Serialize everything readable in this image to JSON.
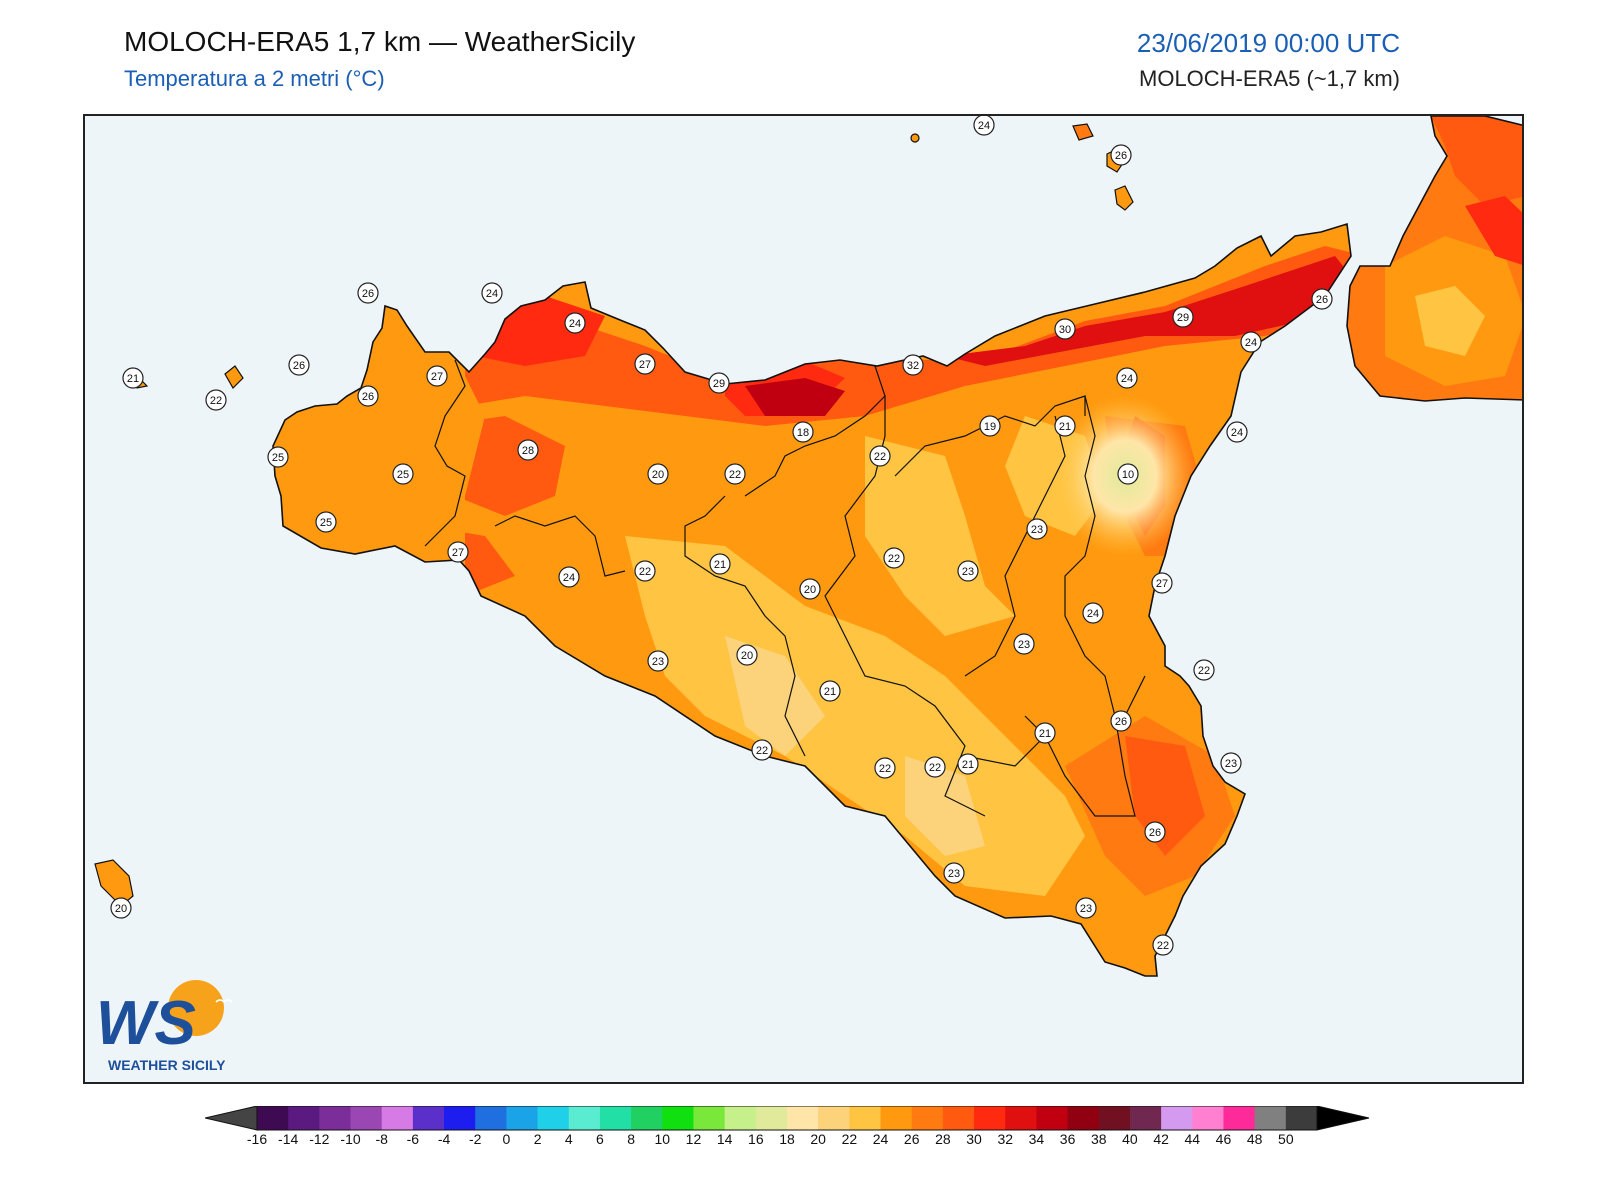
{
  "header": {
    "title": "MOLOCH-ERA5 1,7 km — WeatherSicily",
    "subtitle": "Temperatura a 2 metri (°C)",
    "datetime": "23/06/2019 00:00 UTC",
    "model": "MOLOCH-ERA5 (~1,7 km)"
  },
  "logo": {
    "letters": "WS",
    "text": "WEATHER SICILY"
  },
  "map": {
    "region": "Sicily",
    "sea_color": "#eef5f9",
    "stations": [
      {
        "v": "24"
      },
      {
        "v": "26"
      },
      {
        "v": "26"
      },
      {
        "v": "24"
      },
      {
        "v": "24"
      },
      {
        "v": "21"
      },
      {
        "v": "22"
      },
      {
        "v": "26"
      },
      {
        "v": "27"
      },
      {
        "v": "27"
      },
      {
        "v": "29"
      },
      {
        "v": "32"
      },
      {
        "v": "30"
      },
      {
        "v": "29"
      },
      {
        "v": "26"
      },
      {
        "v": "24"
      },
      {
        "v": "26"
      },
      {
        "v": "18"
      },
      {
        "v": "19"
      },
      {
        "v": "21"
      },
      {
        "v": "24"
      },
      {
        "v": "24"
      },
      {
        "v": "25"
      },
      {
        "v": "25"
      },
      {
        "v": "28"
      },
      {
        "v": "20"
      },
      {
        "v": "22"
      },
      {
        "v": "22"
      },
      {
        "v": "10"
      },
      {
        "v": "25"
      },
      {
        "v": "27"
      },
      {
        "v": "24"
      },
      {
        "v": "22"
      },
      {
        "v": "21"
      },
      {
        "v": "20"
      },
      {
        "v": "22"
      },
      {
        "v": "23"
      },
      {
        "v": "23"
      },
      {
        "v": "27"
      },
      {
        "v": "24"
      },
      {
        "v": "23"
      },
      {
        "v": "23"
      },
      {
        "v": "20"
      },
      {
        "v": "21"
      },
      {
        "v": "22"
      },
      {
        "v": "22"
      },
      {
        "v": "22"
      },
      {
        "v": "21"
      },
      {
        "v": "21"
      },
      {
        "v": "26"
      },
      {
        "v": "23"
      },
      {
        "v": "22"
      },
      {
        "v": "26"
      },
      {
        "v": "23"
      },
      {
        "v": "23"
      },
      {
        "v": "22"
      },
      {
        "v": "20"
      }
    ]
  },
  "colorbar": {
    "ticks": [
      "-16",
      "-14",
      "-12",
      "-10",
      "-8",
      "-6",
      "-4",
      "-2",
      "0",
      "2",
      "4",
      "6",
      "8",
      "10",
      "12",
      "14",
      "16",
      "18",
      "20",
      "22",
      "24",
      "26",
      "28",
      "30",
      "32",
      "34",
      "36",
      "38",
      "40",
      "42",
      "44",
      "46",
      "48",
      "50"
    ],
    "colors": [
      "#3e0a52",
      "#5a1a80",
      "#7b2d9a",
      "#9a47b3",
      "#d67ae6",
      "#5b2fc9",
      "#1d1df0",
      "#1f6fe0",
      "#1aa3e6",
      "#20d0e8",
      "#59ecd0",
      "#22e0a5",
      "#20d060",
      "#10e010",
      "#7ae83a",
      "#c6f08a",
      "#e0ea9a",
      "#ffe6a8",
      "#fcd27a",
      "#ffc442",
      "#ff9a10",
      "#ff7a10",
      "#ff5a10",
      "#ff2a10",
      "#e01010",
      "#c00010",
      "#900010",
      "#701020",
      "#702850",
      "#d49af0",
      "#ff80d0",
      "#ff2a99",
      "#808080",
      "#3c3c3c"
    ],
    "under_color": "#444444",
    "over_color": "#000000"
  }
}
